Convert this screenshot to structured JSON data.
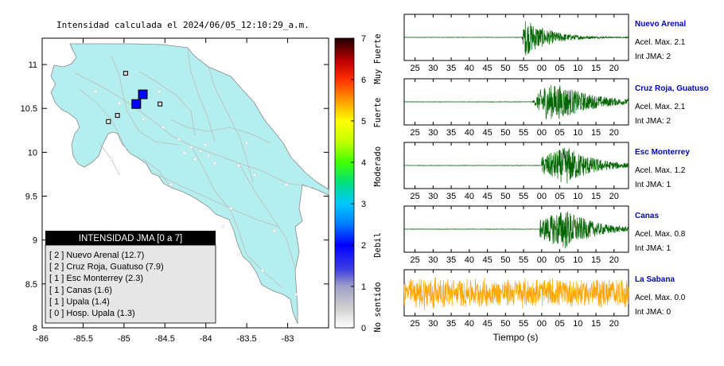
{
  "map": {
    "title": "Intensidad calculada el 2024/06/05_12:10:29_a.m.",
    "y_ticks": [
      "11",
      "10.5",
      "10",
      "9.5",
      "9",
      "8.5",
      "8"
    ],
    "x_ticks": [
      "-86",
      "-85.5",
      "-85",
      "-84.5",
      "-84",
      "-83.5",
      "-83"
    ],
    "xlim": [
      -86,
      -82.5
    ],
    "ylim": [
      8,
      11.3
    ],
    "stations": [
      {
        "lon": -84.77,
        "lat": 10.66,
        "intensity": 2,
        "size": "large"
      },
      {
        "lon": -84.85,
        "lat": 10.55,
        "intensity": 2,
        "size": "large"
      },
      {
        "lon": -84.98,
        "lat": 10.9,
        "intensity": 1,
        "size": "small"
      },
      {
        "lon": -84.56,
        "lat": 10.55,
        "intensity": 1,
        "size": "small"
      },
      {
        "lon": -85.08,
        "lat": 10.42,
        "intensity": 1,
        "size": "small"
      },
      {
        "lon": -85.19,
        "lat": 10.35,
        "intensity": 0,
        "size": "small"
      }
    ]
  },
  "colorbar": {
    "ticks": [
      "0",
      "1",
      "2",
      "3",
      "4",
      "5",
      "6",
      "7"
    ],
    "labels": [
      {
        "text": "No sentido",
        "level": 0.5
      },
      {
        "text": "Debil",
        "level": 2.0
      },
      {
        "text": "Moderado",
        "level": 3.9
      },
      {
        "text": "Fuerte",
        "level": 5.2
      },
      {
        "text": "Muy Fuerte",
        "level": 6.5
      }
    ]
  },
  "legend": {
    "header": "INTENSIDAD JMA [0 a 7]",
    "items": [
      "[ 2 ]  Nuevo Arenal (12.7)",
      "[ 2 ]  Cruz Roja, Guatuso (7.9)",
      "[ 1 ]  Esc Monterrey (2.3)",
      "[ 1 ]  Canas (1.6)",
      "[ 1 ]  Upala (1.4)",
      "[ 0 ]  Hosp. Upala (1.3)"
    ]
  },
  "chart_data": {
    "type": "line",
    "x_ticks": [
      "25",
      "30",
      "35",
      "40",
      "45",
      "50",
      "55",
      "00",
      "05",
      "10",
      "15",
      "20"
    ],
    "xlabel": "Tiempo (s)",
    "traces": [
      {
        "name": "Nuevo Arenal",
        "acel": "Acel. Max. 2.1",
        "int": "Int JMA: 2",
        "color": "#006400",
        "onset": 54.5,
        "peak": 1.0,
        "shape": "decay"
      },
      {
        "name": "Cruz Roja, Guatuso",
        "acel": "Acel. Max. 2.1",
        "int": "Int JMA: 2",
        "color": "#006400",
        "onset": 57.5,
        "peak": 0.8,
        "shape": "sustain"
      },
      {
        "name": "Esc Monterrey",
        "acel": "Acel. Max. 1.2",
        "int": "Int JMA: 1",
        "color": "#006400",
        "onset": 60.0,
        "peak": 0.9,
        "shape": "build"
      },
      {
        "name": "Canas",
        "acel": "Acel. Max. 0.8",
        "int": "Int JMA: 1",
        "color": "#006400",
        "onset": 59.5,
        "peak": 0.95,
        "shape": "build"
      },
      {
        "name": "La Sabana",
        "acel": "Acel. Max. 0.0",
        "int": "Int JMA: 0",
        "color": "#FFA500",
        "onset": 22.0,
        "peak": 0.75,
        "shape": "noise"
      }
    ]
  },
  "colors": {
    "land": "#b4eeee",
    "roads": "#bdbdbd",
    "legend_header_bg": "#000000",
    "legend_bg": "#e6e6e6",
    "station_label": "#0000cc"
  }
}
